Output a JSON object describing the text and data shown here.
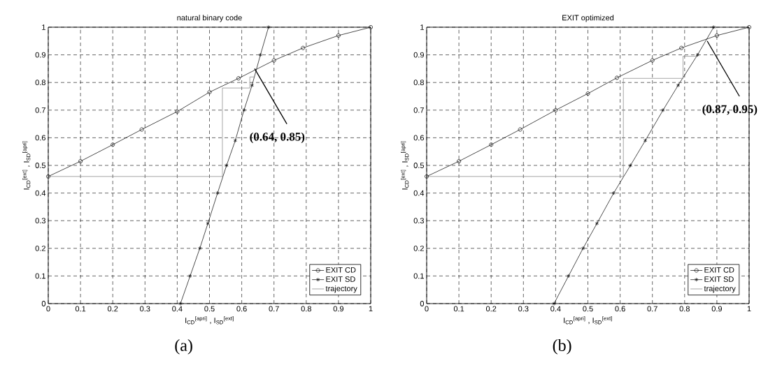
{
  "chart_data": [
    {
      "type": "line",
      "title": "natural binary code",
      "xlabel": "I$_{CD}$$^{[apri]}$ , I$_{SD}$$^{[ext]}$",
      "ylabel": "I$_{CD}$$^{[ext]}$ , I$_{SD}$$^{[apri]}$",
      "xlim": [
        0,
        1
      ],
      "ylim": [
        0,
        1
      ],
      "xticks": [
        0,
        0.1,
        0.2,
        0.3,
        0.4,
        0.5,
        0.6,
        0.7,
        0.8,
        0.9,
        1
      ],
      "yticks": [
        0,
        0.1,
        0.2,
        0.3,
        0.4,
        0.5,
        0.6,
        0.7,
        0.8,
        0.9,
        1
      ],
      "grid": true,
      "legend": "bottom right",
      "line_style": "solid",
      "series": [
        {
          "name": "EXIT CD",
          "color": "#000000",
          "marker": "circle",
          "x": [
            0,
            0.1,
            0.2,
            0.29,
            0.4,
            0.5,
            0.59,
            0.7,
            0.79,
            0.9,
            1
          ],
          "values": [
            0.46,
            0.515,
            0.575,
            0.63,
            0.695,
            0.765,
            0.815,
            0.88,
            0.925,
            0.97,
            1
          ]
        },
        {
          "name": "EXIT SD",
          "color": "#000000",
          "marker": "cross",
          "x": [
            0.41,
            0.44,
            0.47,
            0.495,
            0.525,
            0.553,
            0.58,
            0.607,
            0.632,
            0.658,
            0.683
          ],
          "values": [
            0,
            0.1,
            0.2,
            0.29,
            0.4,
            0.5,
            0.59,
            0.7,
            0.79,
            0.9,
            1
          ]
        },
        {
          "name": "trajectory",
          "color": "#808080",
          "marker": "none",
          "x": [
            0,
            0.54,
            0.54,
            0.625,
            0.625,
            0.64
          ],
          "values": [
            0.46,
            0.46,
            0.78,
            0.78,
            0.82,
            0.82
          ]
        }
      ],
      "annotations": [
        {
          "text": "(0.64, 0.85)",
          "x": 0.64,
          "y": 0.85
        },
        "(a)"
      ]
    },
    {
      "type": "line",
      "title": "EXIT optimized",
      "xlabel": "I$_{CD}$$^{[apri]}$ , I$_{SD}$$^{[ext]}$",
      "ylabel": "I$_{CD}$$^{[ext]}$ , I$_{SD}$$^{[apri]}$",
      "xlim": [
        0,
        1
      ],
      "ylim": [
        0,
        1
      ],
      "xticks": [
        0,
        0.1,
        0.2,
        0.3,
        0.4,
        0.5,
        0.6,
        0.7,
        0.8,
        0.9,
        1
      ],
      "yticks": [
        0,
        0.1,
        0.2,
        0.3,
        0.4,
        0.5,
        0.6,
        0.7,
        0.8,
        0.9,
        1
      ],
      "grid": true,
      "legend": "bottom right",
      "line_style": "solid",
      "series": [
        {
          "name": "EXIT CD",
          "color": "#000000",
          "marker": "circle",
          "x": [
            0,
            0.1,
            0.2,
            0.29,
            0.4,
            0.5,
            0.59,
            0.7,
            0.79,
            0.9,
            1
          ],
          "values": [
            0.46,
            0.515,
            0.575,
            0.63,
            0.7,
            0.76,
            0.817,
            0.88,
            0.925,
            0.97,
            1
          ]
        },
        {
          "name": "EXIT SD",
          "color": "#000000",
          "marker": "cross",
          "x": [
            0.395,
            0.44,
            0.485,
            0.528,
            0.58,
            0.632,
            0.678,
            0.733,
            0.78,
            0.84,
            0.89
          ],
          "values": [
            0,
            0.1,
            0.2,
            0.29,
            0.4,
            0.5,
            0.59,
            0.7,
            0.79,
            0.9,
            1
          ]
        },
        {
          "name": "trajectory",
          "color": "#808080",
          "marker": "none",
          "x": [
            0,
            0.61,
            0.61,
            0.795,
            0.795,
            0.84,
            0.84
          ],
          "values": [
            0.46,
            0.46,
            0.815,
            0.815,
            0.895,
            0.895,
            0.905
          ]
        }
      ],
      "annotations": [
        {
          "text": "(0.87, 0.95)",
          "x": 0.87,
          "y": 0.95
        },
        "(b)"
      ]
    }
  ]
}
